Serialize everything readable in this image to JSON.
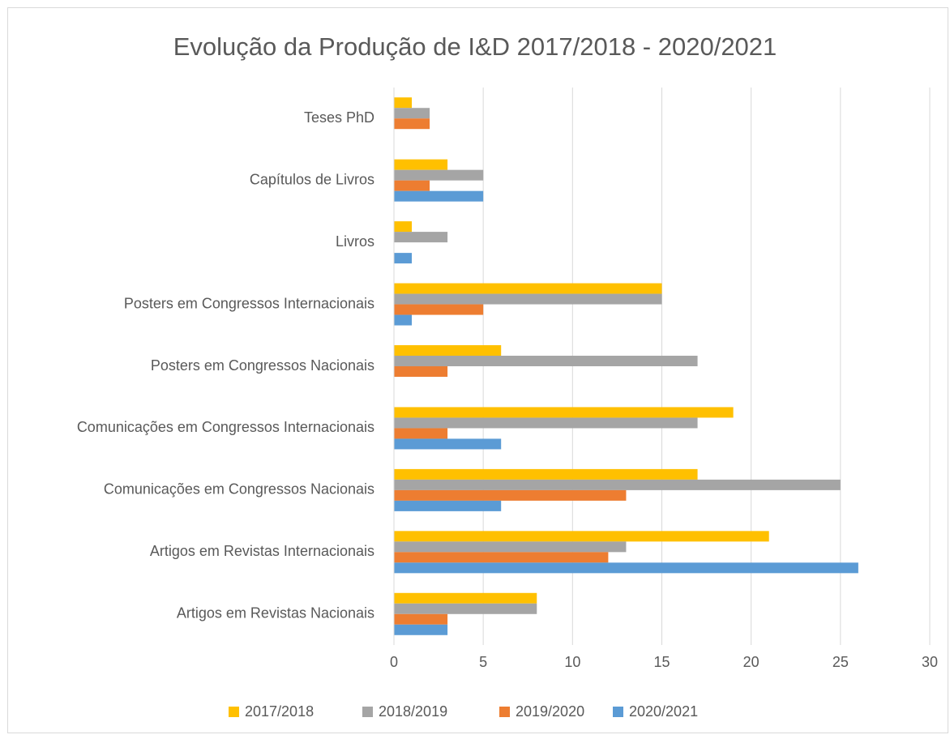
{
  "chart_data": {
    "type": "bar",
    "orientation": "horizontal",
    "title": "Evolução da Produção de I&D 2017/2018 - 2020/2021",
    "categories": [
      "Teses PhD",
      "Capítulos de Livros",
      "Livros",
      "Posters em Congressos Internacionais",
      "Posters em Congressos Nacionais",
      "Comunicações em Congressos Internacionais",
      "Comunicações em Congressos Nacionais",
      "Artigos em Revistas Internacionais",
      "Artigos em Revistas Nacionais"
    ],
    "series": [
      {
        "name": "2017/2018",
        "color": "#ffc000",
        "values": [
          1,
          3,
          1,
          15,
          6,
          19,
          17,
          21,
          8
        ]
      },
      {
        "name": "2018/2019",
        "color": "#a5a5a5",
        "values": [
          2,
          5,
          3,
          15,
          17,
          17,
          25,
          13,
          8
        ]
      },
      {
        "name": "2019/2020",
        "color": "#ed7d31",
        "values": [
          2,
          2,
          0,
          5,
          3,
          3,
          13,
          12,
          3
        ]
      },
      {
        "name": "2020/2021",
        "color": "#5b9bd5",
        "values": [
          0,
          5,
          1,
          1,
          0,
          6,
          6,
          26,
          3
        ]
      }
    ],
    "xlim": [
      0,
      30
    ],
    "xticks": [
      0,
      5,
      10,
      15,
      20,
      25,
      30
    ],
    "grid": true,
    "legend": "bottom"
  }
}
